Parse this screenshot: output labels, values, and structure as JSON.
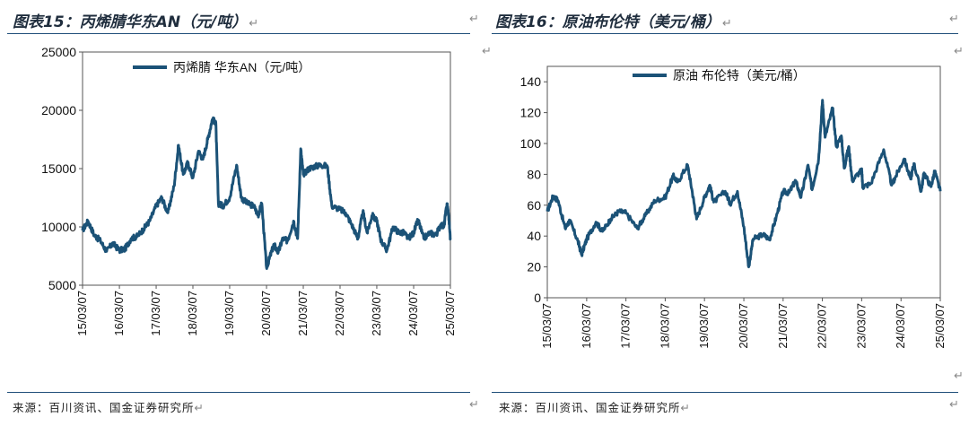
{
  "titles": {
    "left": "图表15：丙烯腈华东AN（元/吨）",
    "right": "图表16：原油布伦特（美元/桶）"
  },
  "sources": {
    "left": "来源：百川资讯、国金证券研究所",
    "right": "来源：百川资讯、国金证券研究所"
  },
  "return_mark": "↵",
  "colors": {
    "series": "#1b5277",
    "header_rule": "#1f4e79",
    "axis": "#555555"
  },
  "chart_data": [
    {
      "type": "line",
      "title": "",
      "legend": "丙烯腈 华东AN（元/吨）",
      "legend_position": "top",
      "xlabel": "",
      "ylabel": "",
      "ylim": [
        5000,
        25000
      ],
      "yticks": [
        5000,
        10000,
        15000,
        20000,
        25000
      ],
      "xticks": [
        "15/03/07",
        "16/03/07",
        "17/03/07",
        "18/03/07",
        "19/03/07",
        "20/03/07",
        "21/03/07",
        "22/03/07",
        "23/03/07",
        "24/03/07",
        "25/03/07"
      ],
      "grid": false,
      "series": [
        {
          "name": "丙烯腈 华东AN（元/吨）",
          "points": [
            [
              "2015-03-07",
              9700
            ],
            [
              "2015-05-01",
              10500
            ],
            [
              "2015-07-01",
              9300
            ],
            [
              "2015-09-01",
              8800
            ],
            [
              "2015-11-01",
              7900
            ],
            [
              "2016-01-01",
              8600
            ],
            [
              "2016-03-07",
              8000
            ],
            [
              "2016-05-01",
              8100
            ],
            [
              "2016-07-01",
              9000
            ],
            [
              "2016-09-01",
              9200
            ],
            [
              "2016-11-01",
              9800
            ],
            [
              "2017-01-01",
              10500
            ],
            [
              "2017-03-07",
              11800
            ],
            [
              "2017-05-01",
              12500
            ],
            [
              "2017-07-01",
              11200
            ],
            [
              "2017-09-01",
              13500
            ],
            [
              "2017-10-15",
              17000
            ],
            [
              "2017-12-01",
              14500
            ],
            [
              "2018-01-15",
              15500
            ],
            [
              "2018-03-07",
              14200
            ],
            [
              "2018-05-01",
              16500
            ],
            [
              "2018-06-15",
              15800
            ],
            [
              "2018-08-01",
              17500
            ],
            [
              "2018-09-15",
              19200
            ],
            [
              "2018-10-20",
              19000
            ],
            [
              "2018-11-15",
              12000
            ],
            [
              "2018-12-31",
              11800
            ],
            [
              "2019-03-07",
              12500
            ],
            [
              "2019-05-15",
              15300
            ],
            [
              "2019-07-01",
              12500
            ],
            [
              "2019-09-01",
              12000
            ],
            [
              "2019-11-01",
              11800
            ],
            [
              "2019-12-15",
              11000
            ],
            [
              "2020-01-20",
              12000
            ],
            [
              "2020-03-07",
              6500
            ],
            [
              "2020-04-01",
              7200
            ],
            [
              "2020-05-20",
              8500
            ],
            [
              "2020-07-01",
              7800
            ],
            [
              "2020-08-15",
              9000
            ],
            [
              "2020-10-01",
              8800
            ],
            [
              "2020-12-01",
              10500
            ],
            [
              "2021-01-10",
              9000
            ],
            [
              "2021-02-10",
              16700
            ],
            [
              "2021-03-07",
              14500
            ],
            [
              "2021-05-01",
              15000
            ],
            [
              "2021-07-01",
              15200
            ],
            [
              "2021-09-01",
              15300
            ],
            [
              "2021-11-01",
              15200
            ],
            [
              "2021-12-15",
              11800
            ],
            [
              "2022-03-07",
              11500
            ],
            [
              "2022-05-01",
              11200
            ],
            [
              "2022-07-01",
              10200
            ],
            [
              "2022-09-01",
              9000
            ],
            [
              "2022-10-20",
              11300
            ],
            [
              "2022-12-01",
              9500
            ],
            [
              "2023-01-20",
              11000
            ],
            [
              "2023-03-07",
              10500
            ],
            [
              "2023-04-20",
              8800
            ],
            [
              "2023-06-15",
              8000
            ],
            [
              "2023-08-15",
              10000
            ],
            [
              "2023-10-15",
              9500
            ],
            [
              "2023-12-01",
              9500
            ],
            [
              "2024-01-15",
              9000
            ],
            [
              "2024-03-07",
              9500
            ],
            [
              "2024-04-20",
              10600
            ],
            [
              "2024-06-15",
              9000
            ],
            [
              "2024-08-15",
              9500
            ],
            [
              "2024-10-15",
              9300
            ],
            [
              "2024-12-01",
              10200
            ],
            [
              "2025-01-01",
              10000
            ],
            [
              "2025-02-01",
              12000
            ],
            [
              "2025-02-15",
              11200
            ],
            [
              "2025-03-07",
              9000
            ]
          ]
        }
      ]
    },
    {
      "type": "line",
      "title": "",
      "legend": "原油 布伦特（美元/桶）",
      "legend_position": "top",
      "xlabel": "",
      "ylabel": "",
      "ylim": [
        0,
        150
      ],
      "yticks": [
        0,
        20,
        40,
        60,
        80,
        100,
        120,
        140
      ],
      "xticks": [
        "15/03/07",
        "16/03/07",
        "17/03/07",
        "18/03/07",
        "19/03/07",
        "20/03/07",
        "21/03/07",
        "22/03/07",
        "23/03/07",
        "24/03/07",
        "25/03/07"
      ],
      "grid": false,
      "series": [
        {
          "name": "原油 布伦特（美元/桶）",
          "points": [
            [
              "2015-03-07",
              56
            ],
            [
              "2015-05-01",
              66
            ],
            [
              "2015-06-15",
              63
            ],
            [
              "2015-08-20",
              45
            ],
            [
              "2015-10-01",
              50
            ],
            [
              "2015-12-15",
              37
            ],
            [
              "2016-01-20",
              28
            ],
            [
              "2016-03-07",
              38
            ],
            [
              "2016-06-01",
              49
            ],
            [
              "2016-08-01",
              43
            ],
            [
              "2016-10-15",
              51
            ],
            [
              "2016-12-31",
              56
            ],
            [
              "2017-03-07",
              55
            ],
            [
              "2017-06-20",
              45
            ],
            [
              "2017-09-01",
              53
            ],
            [
              "2017-12-01",
              63
            ],
            [
              "2018-03-07",
              65
            ],
            [
              "2018-05-20",
              79
            ],
            [
              "2018-07-01",
              75
            ],
            [
              "2018-10-01",
              86
            ],
            [
              "2018-11-15",
              68
            ],
            [
              "2018-12-24",
              51
            ],
            [
              "2019-03-07",
              65
            ],
            [
              "2019-04-25",
              73
            ],
            [
              "2019-06-01",
              62
            ],
            [
              "2019-09-16",
              69
            ],
            [
              "2019-11-01",
              61
            ],
            [
              "2020-01-07",
              69
            ],
            [
              "2020-03-07",
              46
            ],
            [
              "2020-04-21",
              20
            ],
            [
              "2020-06-01",
              38
            ],
            [
              "2020-09-01",
              41
            ],
            [
              "2020-11-01",
              38
            ],
            [
              "2021-01-01",
              52
            ],
            [
              "2021-03-07",
              69
            ],
            [
              "2021-05-01",
              68
            ],
            [
              "2021-07-01",
              76
            ],
            [
              "2021-08-20",
              65
            ],
            [
              "2021-10-25",
              86
            ],
            [
              "2021-12-01",
              70
            ],
            [
              "2022-01-31",
              90
            ],
            [
              "2022-03-08",
              128
            ],
            [
              "2022-04-01",
              104
            ],
            [
              "2022-06-10",
              123
            ],
            [
              "2022-07-15",
              98
            ],
            [
              "2022-08-30",
              105
            ],
            [
              "2022-09-26",
              84
            ],
            [
              "2022-11-07",
              98
            ],
            [
              "2022-12-09",
              76
            ],
            [
              "2023-03-07",
              83
            ],
            [
              "2023-03-17",
              72
            ],
            [
              "2023-06-01",
              74
            ],
            [
              "2023-09-28",
              96
            ],
            [
              "2023-12-12",
              73
            ],
            [
              "2024-01-20",
              79
            ],
            [
              "2024-04-05",
              90
            ],
            [
              "2024-06-04",
              77
            ],
            [
              "2024-07-05",
              87
            ],
            [
              "2024-09-10",
              69
            ],
            [
              "2024-10-07",
              81
            ],
            [
              "2024-12-10",
              72
            ],
            [
              "2025-01-15",
              82
            ],
            [
              "2025-03-07",
              69
            ]
          ]
        }
      ]
    }
  ]
}
